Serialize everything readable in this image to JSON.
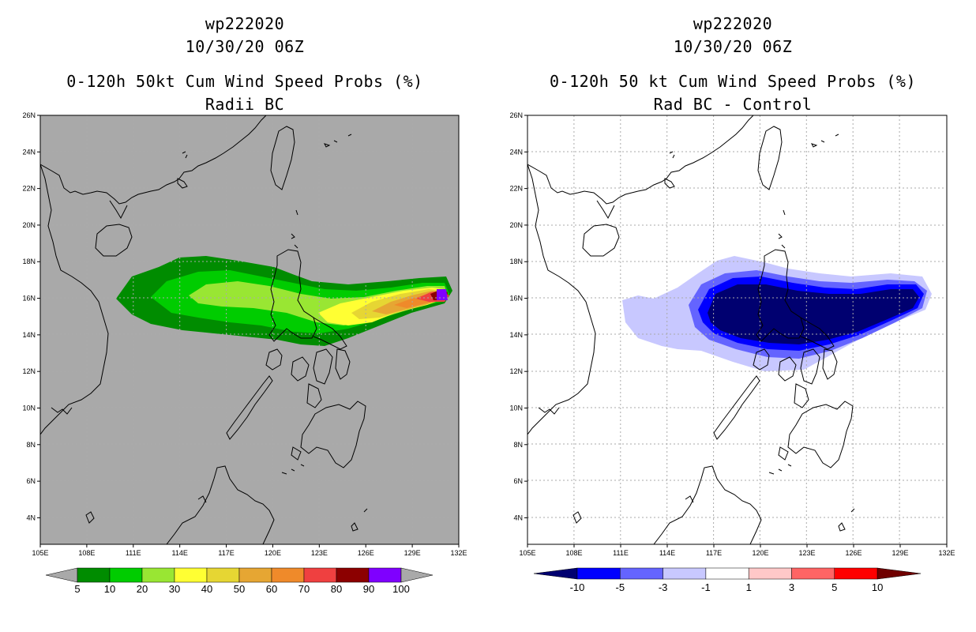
{
  "left": {
    "storm_id": "wp222020",
    "datetime": "10/30/20 06Z",
    "product": "0-120h 50kt Cum Wind Speed Probs (%)",
    "subtitle": "Radii BC",
    "colorbar": {
      "colors": [
        "#008c00",
        "#00cc00",
        "#99e633",
        "#ffff33",
        "#e6d633",
        "#e6a633",
        "#ef8a2a",
        "#ef4040",
        "#8c0000",
        "#7f00ff"
      ],
      "labels": [
        "5",
        "10",
        "20",
        "30",
        "40",
        "50",
        "60",
        "70",
        "80",
        "90",
        "100"
      ]
    }
  },
  "right": {
    "storm_id": "wp222020",
    "datetime": "10/30/20 06Z",
    "product": "0-120h 50 kt Cum Wind Speed Probs (%)",
    "subtitle": "Rad BC - Control",
    "colorbar": {
      "colors": [
        "#000070",
        "#0000ff",
        "#6464ff",
        "#c8c8ff",
        "#ffffff",
        "#ffc8c8",
        "#ff6464",
        "#ff0000",
        "#700000"
      ],
      "labels": [
        "-10",
        "-5",
        "-3",
        "-1",
        "1",
        "3",
        "5",
        "10"
      ]
    }
  },
  "axes": {
    "lon_labels": [
      "105E",
      "108E",
      "111E",
      "114E",
      "117E",
      "120E",
      "123E",
      "126E",
      "129E",
      "132E"
    ],
    "lat_labels": [
      "4N",
      "6N",
      "8N",
      "10N",
      "12N",
      "14N",
      "16N",
      "18N",
      "20N",
      "22N",
      "24N",
      "26N"
    ]
  }
}
